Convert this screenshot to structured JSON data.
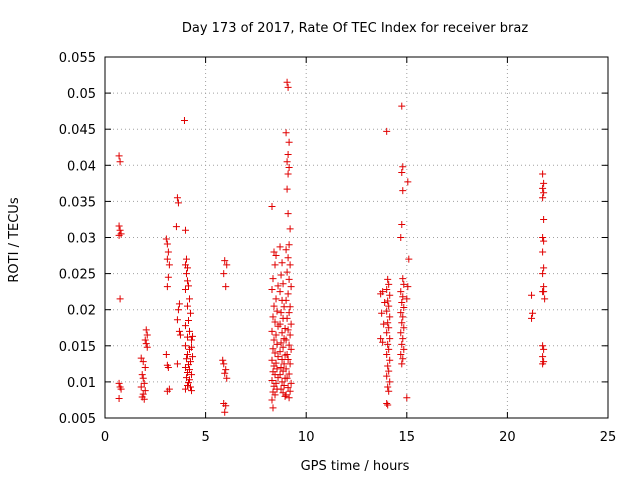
{
  "chart_data": {
    "type": "scatter",
    "title": "Day 173 of 2017, Rate Of TEC Index for receiver braz",
    "xlabel": "GPS time / hours",
    "ylabel": "ROTI / TECUs",
    "xlim": [
      0,
      25
    ],
    "ylim": [
      0.005,
      0.055
    ],
    "x_ticks": [
      0,
      5,
      10,
      15,
      20,
      25
    ],
    "y_ticks": [
      0.005,
      0.01,
      0.015,
      0.02,
      0.025,
      0.03,
      0.035,
      0.04,
      0.045,
      0.05,
      0.055
    ],
    "x_tick_labels": [
      "0",
      "5",
      "10",
      "15",
      "20",
      "25"
    ],
    "y_tick_labels": [
      "0.005",
      "0.01",
      "0.015",
      "0.02",
      "0.025",
      "0.03",
      "0.035",
      "0.04",
      "0.045",
      "0.05",
      "0.055"
    ],
    "grid": true,
    "marker": "+",
    "marker_color": "#e00000",
    "points": [
      [
        0.7,
        0.0413
      ],
      [
        0.75,
        0.0405
      ],
      [
        0.7,
        0.0316
      ],
      [
        0.75,
        0.031
      ],
      [
        0.7,
        0.0303
      ],
      [
        0.8,
        0.0305
      ],
      [
        0.75,
        0.0215
      ],
      [
        0.7,
        0.0098
      ],
      [
        0.75,
        0.0093
      ],
      [
        0.8,
        0.009
      ],
      [
        0.7,
        0.0077
      ],
      [
        1.8,
        0.0133
      ],
      [
        1.9,
        0.0128
      ],
      [
        2.0,
        0.012
      ],
      [
        1.85,
        0.011
      ],
      [
        1.9,
        0.0105
      ],
      [
        1.95,
        0.0098
      ],
      [
        1.8,
        0.0093
      ],
      [
        2.0,
        0.0088
      ],
      [
        1.9,
        0.0083
      ],
      [
        1.85,
        0.0079
      ],
      [
        1.95,
        0.0076
      ],
      [
        2.05,
        0.0172
      ],
      [
        2.1,
        0.0165
      ],
      [
        2.0,
        0.0158
      ],
      [
        2.05,
        0.0153
      ],
      [
        2.1,
        0.0148
      ],
      [
        3.05,
        0.0298
      ],
      [
        3.1,
        0.0291
      ],
      [
        3.15,
        0.028
      ],
      [
        3.1,
        0.027
      ],
      [
        3.2,
        0.0262
      ],
      [
        3.15,
        0.0245
      ],
      [
        3.1,
        0.0232
      ],
      [
        3.05,
        0.0138
      ],
      [
        3.1,
        0.0123
      ],
      [
        3.15,
        0.012
      ],
      [
        3.2,
        0.009
      ],
      [
        3.1,
        0.0087
      ],
      [
        3.6,
        0.0355
      ],
      [
        3.65,
        0.0348
      ],
      [
        3.55,
        0.0315
      ],
      [
        3.7,
        0.0208
      ],
      [
        3.65,
        0.02
      ],
      [
        3.6,
        0.0186
      ],
      [
        3.7,
        0.017
      ],
      [
        3.75,
        0.0165
      ],
      [
        3.6,
        0.0125
      ],
      [
        3.95,
        0.0462
      ],
      [
        4.0,
        0.031
      ],
      [
        4.05,
        0.027
      ],
      [
        4.0,
        0.0262
      ],
      [
        4.1,
        0.0258
      ],
      [
        4.05,
        0.025
      ],
      [
        4.1,
        0.024
      ],
      [
        4.15,
        0.0233
      ],
      [
        4.0,
        0.0228
      ],
      [
        4.2,
        0.0215
      ],
      [
        4.1,
        0.0205
      ],
      [
        4.25,
        0.0195
      ],
      [
        4.15,
        0.0185
      ],
      [
        4.0,
        0.0178
      ],
      [
        4.2,
        0.017
      ],
      [
        4.1,
        0.0162
      ],
      [
        4.3,
        0.0158
      ],
      [
        4.0,
        0.015
      ],
      [
        4.2,
        0.0145
      ],
      [
        4.1,
        0.0138
      ],
      [
        4.05,
        0.0132
      ],
      [
        4.25,
        0.0128
      ],
      [
        4.15,
        0.0124
      ],
      [
        4.0,
        0.012
      ],
      [
        4.2,
        0.0117
      ],
      [
        4.1,
        0.0113
      ],
      [
        4.3,
        0.011
      ],
      [
        4.05,
        0.0106
      ],
      [
        4.2,
        0.0103
      ],
      [
        4.15,
        0.0099
      ],
      [
        4.1,
        0.0095
      ],
      [
        4.25,
        0.0093
      ],
      [
        4.0,
        0.009
      ],
      [
        4.3,
        0.0088
      ],
      [
        4.35,
        0.0163
      ],
      [
        4.3,
        0.0148
      ],
      [
        4.35,
        0.0135
      ],
      [
        5.95,
        0.0268
      ],
      [
        6.05,
        0.0262
      ],
      [
        5.9,
        0.025
      ],
      [
        6.0,
        0.0232
      ],
      [
        5.85,
        0.013
      ],
      [
        5.9,
        0.0125
      ],
      [
        6.0,
        0.0117
      ],
      [
        5.95,
        0.0112
      ],
      [
        6.05,
        0.0105
      ],
      [
        5.9,
        0.007
      ],
      [
        6.0,
        0.0067
      ],
      [
        5.95,
        0.0058
      ],
      [
        8.3,
        0.0343
      ],
      [
        8.4,
        0.028
      ],
      [
        8.5,
        0.0275
      ],
      [
        8.45,
        0.0262
      ],
      [
        8.35,
        0.0243
      ],
      [
        8.6,
        0.0233
      ],
      [
        8.3,
        0.0228
      ],
      [
        8.5,
        0.0215
      ],
      [
        8.4,
        0.0205
      ],
      [
        8.55,
        0.0198
      ],
      [
        8.35,
        0.019
      ],
      [
        8.45,
        0.0183
      ],
      [
        8.6,
        0.0177
      ],
      [
        8.3,
        0.017
      ],
      [
        8.5,
        0.0165
      ],
      [
        8.4,
        0.0158
      ],
      [
        8.55,
        0.0152
      ],
      [
        8.35,
        0.0146
      ],
      [
        8.45,
        0.014
      ],
      [
        8.6,
        0.0135
      ],
      [
        8.3,
        0.013
      ],
      [
        8.5,
        0.0126
      ],
      [
        8.4,
        0.0122
      ],
      [
        8.55,
        0.0118
      ],
      [
        8.35,
        0.0114
      ],
      [
        8.45,
        0.011
      ],
      [
        8.6,
        0.0106
      ],
      [
        8.3,
        0.0102
      ],
      [
        8.5,
        0.0098
      ],
      [
        8.4,
        0.0094
      ],
      [
        8.55,
        0.009
      ],
      [
        8.35,
        0.0086
      ],
      [
        8.45,
        0.0082
      ],
      [
        8.3,
        0.0075
      ],
      [
        8.35,
        0.0064
      ],
      [
        8.7,
        0.0287
      ],
      [
        8.8,
        0.0265
      ],
      [
        8.75,
        0.0248
      ],
      [
        8.85,
        0.0236
      ],
      [
        8.7,
        0.0225
      ],
      [
        8.8,
        0.0213
      ],
      [
        8.9,
        0.0204
      ],
      [
        8.75,
        0.0196
      ],
      [
        8.85,
        0.0188
      ],
      [
        8.7,
        0.018
      ],
      [
        8.95,
        0.0174
      ],
      [
        8.8,
        0.0168
      ],
      [
        8.9,
        0.016
      ],
      [
        8.75,
        0.0154
      ],
      [
        8.85,
        0.0148
      ],
      [
        8.7,
        0.0142
      ],
      [
        8.95,
        0.0137
      ],
      [
        8.8,
        0.0131
      ],
      [
        8.9,
        0.0125
      ],
      [
        8.75,
        0.012
      ],
      [
        8.85,
        0.0115
      ],
      [
        8.7,
        0.011
      ],
      [
        8.95,
        0.0105
      ],
      [
        8.8,
        0.01
      ],
      [
        8.9,
        0.0095
      ],
      [
        8.75,
        0.009
      ],
      [
        8.85,
        0.0085
      ],
      [
        8.95,
        0.008
      ],
      [
        9.05,
        0.0515
      ],
      [
        9.1,
        0.0508
      ],
      [
        9.0,
        0.0445
      ],
      [
        9.15,
        0.0432
      ],
      [
        9.1,
        0.0415
      ],
      [
        9.05,
        0.0405
      ],
      [
        9.15,
        0.0397
      ],
      [
        9.1,
        0.0388
      ],
      [
        9.05,
        0.0367
      ],
      [
        9.1,
        0.0333
      ],
      [
        9.2,
        0.0312
      ],
      [
        9.15,
        0.029
      ],
      [
        9.0,
        0.0283
      ],
      [
        9.1,
        0.0272
      ],
      [
        9.2,
        0.0262
      ],
      [
        9.05,
        0.0252
      ],
      [
        9.15,
        0.0242
      ],
      [
        9.25,
        0.0232
      ],
      [
        9.1,
        0.0222
      ],
      [
        9.0,
        0.0213
      ],
      [
        9.2,
        0.0204
      ],
      [
        9.15,
        0.0196
      ],
      [
        9.05,
        0.0188
      ],
      [
        9.25,
        0.018
      ],
      [
        9.1,
        0.0172
      ],
      [
        9.2,
        0.0165
      ],
      [
        9.0,
        0.0158
      ],
      [
        9.15,
        0.0151
      ],
      [
        9.25,
        0.0145
      ],
      [
        9.05,
        0.0138
      ],
      [
        9.1,
        0.0131
      ],
      [
        9.2,
        0.0125
      ],
      [
        9.0,
        0.0118
      ],
      [
        9.15,
        0.0111
      ],
      [
        9.05,
        0.0105
      ],
      [
        9.25,
        0.0098
      ],
      [
        9.1,
        0.0092
      ],
      [
        9.2,
        0.0087
      ],
      [
        9.0,
        0.0082
      ],
      [
        9.15,
        0.0078
      ],
      [
        13.8,
        0.0225
      ],
      [
        13.7,
        0.0222
      ],
      [
        13.9,
        0.021
      ],
      [
        13.75,
        0.0195
      ],
      [
        13.85,
        0.018
      ],
      [
        13.7,
        0.016
      ],
      [
        13.8,
        0.0155
      ],
      [
        14.0,
        0.0447
      ],
      [
        14.05,
        0.0242
      ],
      [
        14.1,
        0.0235
      ],
      [
        14.0,
        0.0228
      ],
      [
        14.15,
        0.022
      ],
      [
        14.05,
        0.0212
      ],
      [
        14.1,
        0.0205
      ],
      [
        14.0,
        0.0198
      ],
      [
        14.15,
        0.019
      ],
      [
        14.05,
        0.0182
      ],
      [
        14.1,
        0.0175
      ],
      [
        14.0,
        0.0168
      ],
      [
        14.15,
        0.016
      ],
      [
        14.05,
        0.0152
      ],
      [
        14.1,
        0.0145
      ],
      [
        14.0,
        0.0138
      ],
      [
        14.15,
        0.013
      ],
      [
        14.05,
        0.0122
      ],
      [
        14.1,
        0.0115
      ],
      [
        14.0,
        0.0108
      ],
      [
        14.15,
        0.01
      ],
      [
        14.05,
        0.0093
      ],
      [
        14.1,
        0.0087
      ],
      [
        14.0,
        0.007
      ],
      [
        14.05,
        0.0068
      ],
      [
        14.75,
        0.0482
      ],
      [
        14.8,
        0.0398
      ],
      [
        14.75,
        0.039
      ],
      [
        14.8,
        0.0365
      ],
      [
        14.75,
        0.0318
      ],
      [
        14.7,
        0.03
      ],
      [
        14.8,
        0.0243
      ],
      [
        14.85,
        0.0235
      ],
      [
        14.7,
        0.0225
      ],
      [
        14.8,
        0.0218
      ],
      [
        14.75,
        0.021
      ],
      [
        14.85,
        0.0203
      ],
      [
        14.7,
        0.0196
      ],
      [
        14.8,
        0.019
      ],
      [
        14.75,
        0.0182
      ],
      [
        14.85,
        0.0175
      ],
      [
        14.7,
        0.0168
      ],
      [
        14.8,
        0.016
      ],
      [
        14.75,
        0.0152
      ],
      [
        14.85,
        0.0145
      ],
      [
        14.7,
        0.0138
      ],
      [
        14.8,
        0.0132
      ],
      [
        14.75,
        0.0125
      ],
      [
        15.05,
        0.0377
      ],
      [
        15.1,
        0.027
      ],
      [
        15.05,
        0.0232
      ],
      [
        15.0,
        0.0215
      ],
      [
        15.0,
        0.0078
      ],
      [
        21.2,
        0.022
      ],
      [
        21.25,
        0.0195
      ],
      [
        21.2,
        0.0188
      ],
      [
        21.75,
        0.0388
      ],
      [
        21.8,
        0.0375
      ],
      [
        21.75,
        0.0368
      ],
      [
        21.8,
        0.0362
      ],
      [
        21.75,
        0.0355
      ],
      [
        21.8,
        0.0325
      ],
      [
        21.75,
        0.03
      ],
      [
        21.8,
        0.0295
      ],
      [
        21.75,
        0.028
      ],
      [
        21.8,
        0.0258
      ],
      [
        21.75,
        0.025
      ],
      [
        21.8,
        0.0232
      ],
      [
        21.75,
        0.0225
      ],
      [
        21.8,
        0.0225
      ],
      [
        21.85,
        0.0215
      ],
      [
        21.75,
        0.015
      ],
      [
        21.8,
        0.0145
      ],
      [
        21.75,
        0.0135
      ],
      [
        21.8,
        0.0128
      ],
      [
        21.75,
        0.0125
      ]
    ]
  }
}
